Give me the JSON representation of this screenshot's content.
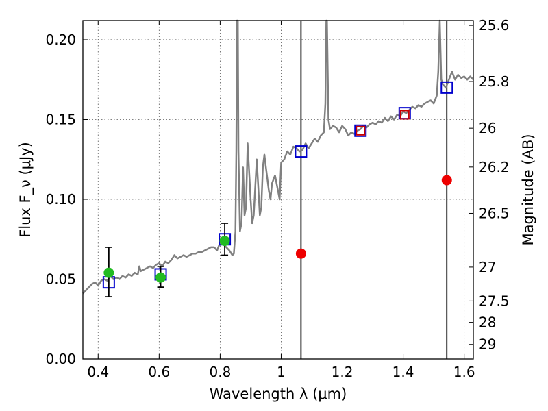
{
  "chart_data": {
    "type": "scatter",
    "xlabel": "Wavelength λ (μm)",
    "ylabel": "Flux F_ν (μJy)",
    "ylabel_right": "Magnitude (AB)",
    "xlim": [
      0.35,
      1.63
    ],
    "ylim": [
      0.0,
      0.212
    ],
    "grid": true,
    "x_ticks": [
      {
        "value": 0.4,
        "label": "0.4"
      },
      {
        "value": 0.6,
        "label": "0.6"
      },
      {
        "value": 0.8,
        "label": "0.8"
      },
      {
        "value": 1.0,
        "label": "1"
      },
      {
        "value": 1.2,
        "label": "1.2"
      },
      {
        "value": 1.4,
        "label": "1.4"
      },
      {
        "value": 1.6,
        "label": "1.6"
      }
    ],
    "y_ticks": [
      {
        "value": 0.0,
        "label": "0.00"
      },
      {
        "value": 0.05,
        "label": "0.05"
      },
      {
        "value": 0.1,
        "label": "0.10"
      },
      {
        "value": 0.15,
        "label": "0.15"
      },
      {
        "value": 0.2,
        "label": "0.20"
      }
    ],
    "right_ticks": [
      {
        "value": 25.6,
        "label": "25.6"
      },
      {
        "value": 25.8,
        "label": "25.8"
      },
      {
        "value": 26,
        "label": "26"
      },
      {
        "value": 26.2,
        "label": "26.2"
      },
      {
        "value": 26.5,
        "label": "26.5"
      },
      {
        "value": 27,
        "label": "27"
      },
      {
        "value": 27.5,
        "label": "27.5"
      },
      {
        "value": 28,
        "label": "28"
      },
      {
        "value": 29,
        "label": "29"
      }
    ],
    "vertical_lines": [
      1.065,
      1.543
    ],
    "colors": {
      "spectrum": "#808080",
      "model": "#0000cc",
      "red_box": "#cc0000",
      "observed": "#22bb22",
      "upper": "#ee0000",
      "error": "#000000",
      "vline": "#000000"
    },
    "series": [
      {
        "style": "line",
        "color": "#808080",
        "x": [
          0.35,
          0.36,
          0.37,
          0.38,
          0.39,
          0.4,
          0.41,
          0.42,
          0.43,
          0.44,
          0.45,
          0.46,
          0.47,
          0.48,
          0.49,
          0.5,
          0.51,
          0.52,
          0.53,
          0.535,
          0.54,
          0.55,
          0.56,
          0.57,
          0.58,
          0.59,
          0.6,
          0.61,
          0.62,
          0.63,
          0.64,
          0.65,
          0.66,
          0.67,
          0.68,
          0.69,
          0.7,
          0.71,
          0.72,
          0.73,
          0.74,
          0.75,
          0.76,
          0.77,
          0.78,
          0.79,
          0.8,
          0.81,
          0.82,
          0.83,
          0.84,
          0.845,
          0.85,
          0.853,
          0.855,
          0.858,
          0.86,
          0.865,
          0.87,
          0.875,
          0.88,
          0.885,
          0.89,
          0.9,
          0.905,
          0.91,
          0.92,
          0.93,
          0.935,
          0.94,
          0.945,
          0.95,
          0.96,
          0.965,
          0.97,
          0.98,
          0.99,
          0.995,
          1.0,
          1.01,
          1.02,
          1.03,
          1.04,
          1.05,
          1.06,
          1.07,
          1.08,
          1.09,
          1.1,
          1.11,
          1.12,
          1.13,
          1.14,
          1.145,
          1.148,
          1.15,
          1.155,
          1.16,
          1.17,
          1.18,
          1.19,
          1.2,
          1.21,
          1.22,
          1.23,
          1.24,
          1.25,
          1.26,
          1.27,
          1.28,
          1.29,
          1.3,
          1.31,
          1.32,
          1.33,
          1.34,
          1.35,
          1.36,
          1.37,
          1.38,
          1.39,
          1.4,
          1.41,
          1.42,
          1.43,
          1.44,
          1.45,
          1.46,
          1.47,
          1.48,
          1.49,
          1.5,
          1.51,
          1.515,
          1.52,
          1.525,
          1.53,
          1.54,
          1.55,
          1.56,
          1.57,
          1.58,
          1.59,
          1.6,
          1.61,
          1.62,
          1.63
        ],
        "y": [
          0.041,
          0.043,
          0.045,
          0.047,
          0.048,
          0.046,
          0.049,
          0.05,
          0.049,
          0.052,
          0.05,
          0.051,
          0.05,
          0.052,
          0.051,
          0.053,
          0.052,
          0.054,
          0.053,
          0.058,
          0.055,
          0.056,
          0.057,
          0.058,
          0.057,
          0.059,
          0.06,
          0.058,
          0.061,
          0.06,
          0.062,
          0.065,
          0.063,
          0.064,
          0.065,
          0.064,
          0.065,
          0.066,
          0.066,
          0.067,
          0.067,
          0.068,
          0.069,
          0.07,
          0.07,
          0.068,
          0.073,
          0.072,
          0.07,
          0.068,
          0.065,
          0.066,
          0.08,
          0.13,
          0.22,
          0.24,
          0.13,
          0.08,
          0.085,
          0.12,
          0.09,
          0.095,
          0.135,
          0.1,
          0.085,
          0.09,
          0.125,
          0.09,
          0.095,
          0.12,
          0.128,
          0.12,
          0.105,
          0.1,
          0.11,
          0.115,
          0.105,
          0.1,
          0.123,
          0.125,
          0.13,
          0.128,
          0.133,
          0.132,
          0.13,
          0.131,
          0.135,
          0.132,
          0.135,
          0.138,
          0.136,
          0.14,
          0.142,
          0.16,
          0.24,
          0.24,
          0.15,
          0.144,
          0.146,
          0.145,
          0.142,
          0.146,
          0.144,
          0.14,
          0.142,
          0.141,
          0.143,
          0.144,
          0.146,
          0.145,
          0.147,
          0.148,
          0.147,
          0.149,
          0.148,
          0.151,
          0.149,
          0.152,
          0.15,
          0.153,
          0.152,
          0.155,
          0.154,
          0.156,
          0.158,
          0.157,
          0.159,
          0.158,
          0.16,
          0.161,
          0.162,
          0.16,
          0.165,
          0.18,
          0.24,
          0.175,
          0.172,
          0.17,
          0.175,
          0.18,
          0.175,
          0.178,
          0.176,
          0.177,
          0.175,
          0.177,
          0.175
        ]
      },
      {
        "style": "open-square",
        "color": "#0000cc",
        "x": [
          0.435,
          0.605,
          0.815,
          1.065,
          1.26,
          1.405,
          1.543
        ],
        "y": [
          0.048,
          0.053,
          0.075,
          0.13,
          0.143,
          0.154,
          0.17
        ]
      },
      {
        "style": "open-square",
        "color": "#cc0000",
        "x": [
          1.26,
          1.405
        ],
        "y": [
          0.143,
          0.153
        ]
      },
      {
        "style": "filled-circle",
        "color": "#22bb22",
        "x": [
          0.435,
          0.605,
          0.815
        ],
        "y": [
          0.054,
          0.051,
          0.074
        ],
        "yerr_low": [
          0.039,
          0.045,
          0.065
        ],
        "yerr_high": [
          0.07,
          0.058,
          0.085
        ]
      },
      {
        "style": "filled-circle",
        "color": "#ee0000",
        "x": [
          1.065,
          1.543
        ],
        "y": [
          0.066,
          0.112
        ]
      }
    ]
  }
}
